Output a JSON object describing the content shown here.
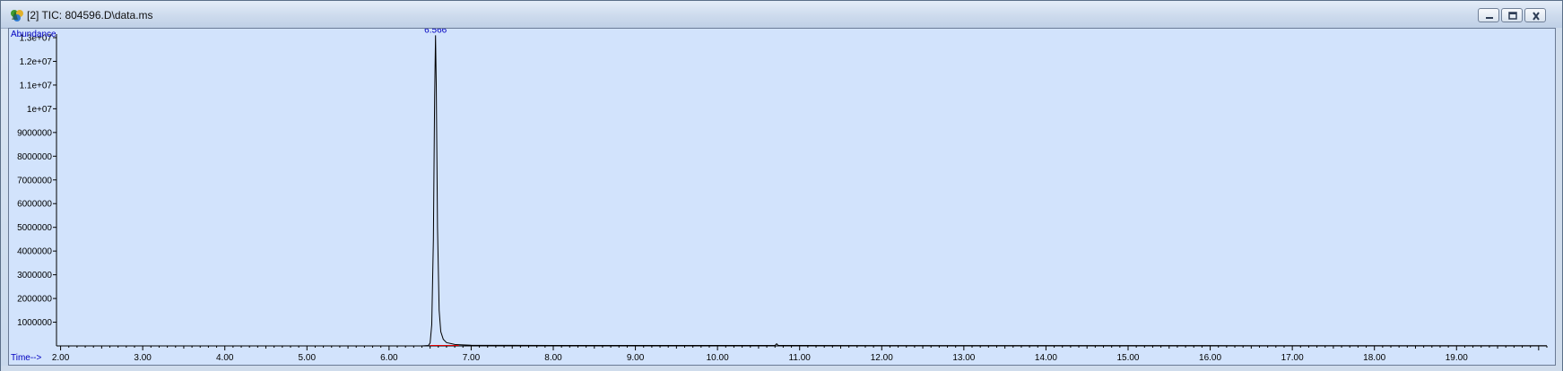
{
  "window": {
    "title": "[2] TIC: 804596.D\\data.ms",
    "icon": "chromatogram-icon",
    "controls": [
      "minimize-icon",
      "restore-icon",
      "close-icon"
    ]
  },
  "colors": {
    "plot_background": "#d2e3fc",
    "trace": "#000000",
    "baseline": "#e00000",
    "label_text": "#0000c0",
    "tick_text": "#000000"
  },
  "chart_data": {
    "type": "line",
    "title": "",
    "ylabel": "Abundance",
    "xlabel": "Time-->",
    "xlim": [
      1.95,
      20.1
    ],
    "ylim": [
      0,
      13000000
    ],
    "y_ticks": [
      {
        "value": 1000000,
        "label": "1000000"
      },
      {
        "value": 2000000,
        "label": "2000000"
      },
      {
        "value": 3000000,
        "label": "3000000"
      },
      {
        "value": 4000000,
        "label": "4000000"
      },
      {
        "value": 5000000,
        "label": "5000000"
      },
      {
        "value": 6000000,
        "label": "6000000"
      },
      {
        "value": 7000000,
        "label": "7000000"
      },
      {
        "value": 8000000,
        "label": "8000000"
      },
      {
        "value": 9000000,
        "label": "9000000"
      },
      {
        "value": 10000000,
        "label": "1e+07"
      },
      {
        "value": 11000000,
        "label": "1.1e+07"
      },
      {
        "value": 12000000,
        "label": "1.2e+07"
      },
      {
        "value": 13000000,
        "label": "1.3e+07"
      }
    ],
    "x_ticks": [
      {
        "value": 2,
        "label": "2.00"
      },
      {
        "value": 3,
        "label": "3.00"
      },
      {
        "value": 4,
        "label": "4.00"
      },
      {
        "value": 5,
        "label": "5.00"
      },
      {
        "value": 6,
        "label": "6.00"
      },
      {
        "value": 7,
        "label": "7.00"
      },
      {
        "value": 8,
        "label": "8.00"
      },
      {
        "value": 9,
        "label": "9.00"
      },
      {
        "value": 10,
        "label": "10.00"
      },
      {
        "value": 11,
        "label": "11.00"
      },
      {
        "value": 12,
        "label": "12.00"
      },
      {
        "value": 13,
        "label": "13.00"
      },
      {
        "value": 14,
        "label": "14.00"
      },
      {
        "value": 15,
        "label": "15.00"
      },
      {
        "value": 16,
        "label": "16.00"
      },
      {
        "value": 17,
        "label": "17.00"
      },
      {
        "value": 18,
        "label": "18.00"
      },
      {
        "value": 19,
        "label": "19.00"
      }
    ],
    "series": [
      {
        "x": [
          1.95,
          6.4,
          6.48,
          6.5,
          6.52,
          6.54,
          6.555,
          6.566,
          6.575,
          6.59,
          6.61,
          6.63,
          6.66,
          6.7,
          6.8,
          7.0,
          7.5,
          8.0,
          10.7,
          10.72,
          10.74,
          12.0,
          16.0,
          20.1
        ],
        "y": [
          0,
          0,
          20000,
          120000,
          900000,
          4500000,
          10500000,
          13100000,
          11000000,
          5000000,
          1500000,
          600000,
          280000,
          140000,
          60000,
          30000,
          25000,
          20000,
          20000,
          90000,
          20000,
          15000,
          12000,
          10000
        ]
      }
    ],
    "baseline": {
      "x": [
        6.5,
        6.85
      ],
      "y": [
        20000,
        20000
      ]
    },
    "annotations": [
      {
        "x": 6.566,
        "y": 13100000,
        "text": "6.566"
      }
    ]
  }
}
